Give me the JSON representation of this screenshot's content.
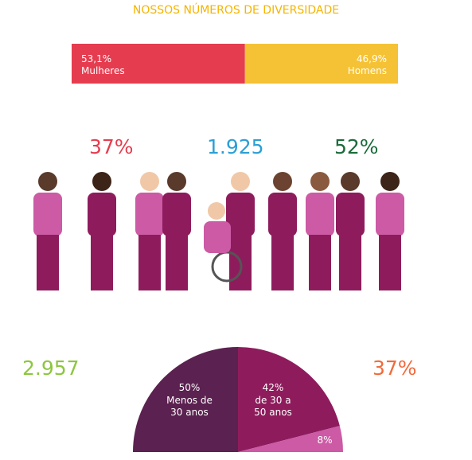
{
  "title": "NOSSOS NÚMEROS DE DIVERSIDADE",
  "gender_split": {
    "series": [
      {
        "name": "Mulheres",
        "color": "#e63c4f",
        "values": [
          53.1
        ],
        "value_labels": [
          "53,1%"
        ]
      },
      {
        "name": "Homens",
        "color": "#f5c235",
        "values": [
          46.9
        ],
        "value_labels": [
          "46,9%"
        ]
      }
    ]
  },
  "stats": [
    {
      "text": "37%",
      "color": "#e63c4f"
    },
    {
      "text": "1.925",
      "color": "#2a9fd6"
    },
    {
      "text": "52%",
      "color": "#1a6b3a"
    },
    {
      "text": "2.957",
      "color": "#8dc63f"
    },
    {
      "text": "37%",
      "color": "#f26a3c"
    }
  ],
  "age_pie": {
    "type": "pie",
    "categories": [
      "Menos de 30 anos",
      "de 30 a 50 anos",
      null
    ],
    "values": [
      50,
      42,
      8
    ],
    "value_labels": [
      "50%",
      "42%",
      "8%"
    ],
    "colors": [
      "#5b2150",
      "#8e1c5d",
      "#cc5aa5"
    ]
  }
}
